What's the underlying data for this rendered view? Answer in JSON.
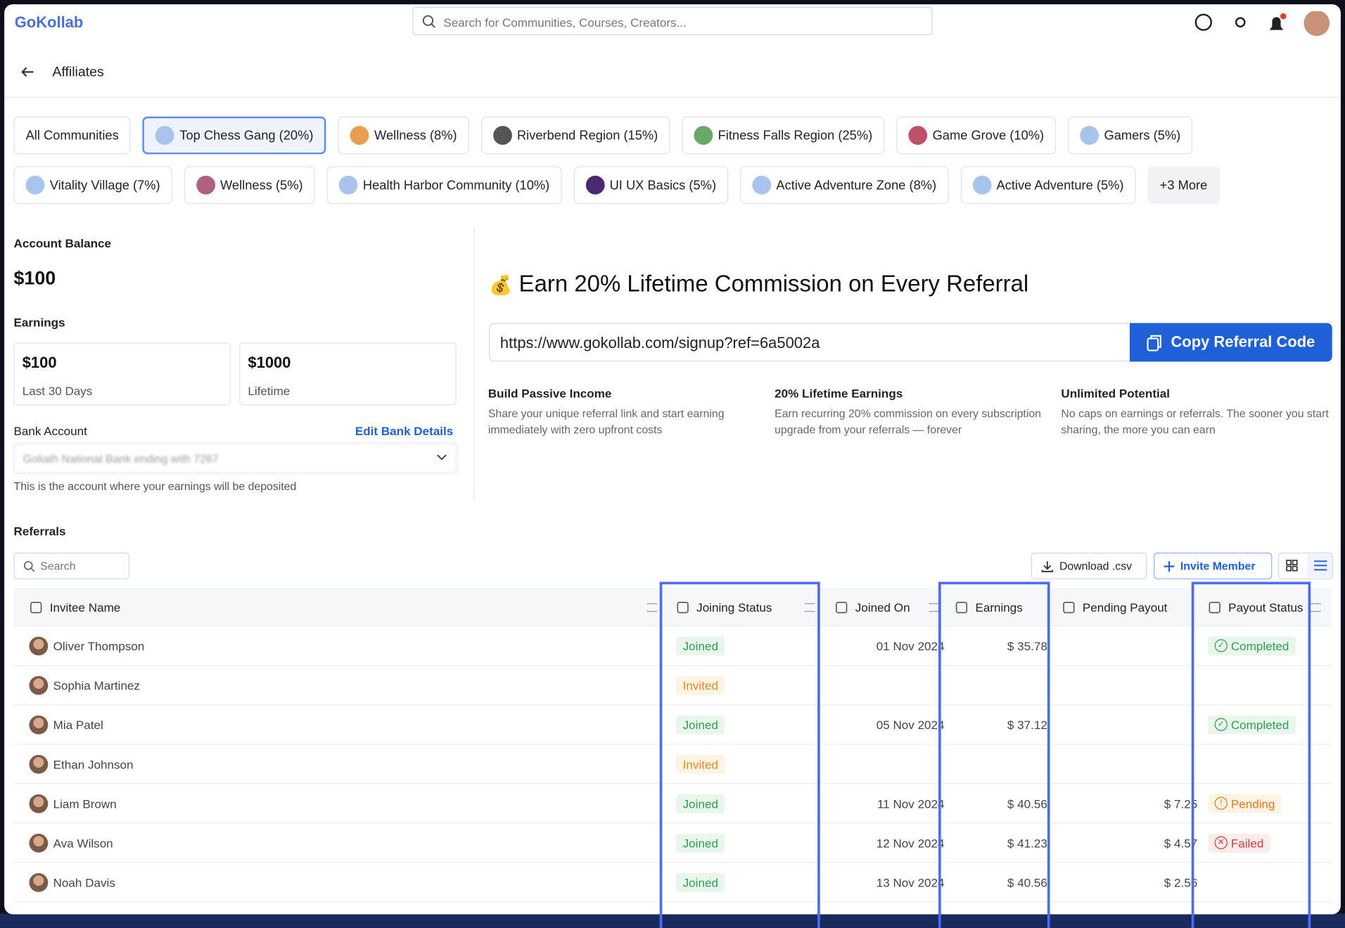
{
  "header": {
    "logo": "GoKollab",
    "search_placeholder": "Search for Communities, Courses, Creators..."
  },
  "page_title": "Affiliates",
  "communities": [
    "All Communities",
    "Top Chess Gang (20%)",
    "Wellness (8%)",
    "Riverbend Region (15%)",
    "Fitness Falls Region (25%)",
    "Game Grove (10%)",
    "Gamers (5%)",
    "Vitality Village (7%)",
    "Wellness (5%)",
    "Health Harbor Community (10%)",
    "UI UX Basics (5%)",
    "Active Adventure Zone (8%)",
    "Active Adventure (5%)",
    "+3 More"
  ],
  "account": {
    "balance_label": "Account Balance",
    "balance": "$100",
    "earnings_label": "Earnings",
    "cards": [
      {
        "value": "$100",
        "label": "Last 30 Days"
      },
      {
        "value": "$1000",
        "label": "Lifetime"
      }
    ],
    "bank_label": "Bank Account",
    "edit_link": "Edit Bank Details",
    "bank_value": "Goliath National Bank ending with 7267",
    "bank_hint": "This is the account where your earnings will be deposited"
  },
  "referral": {
    "emoji": "💰",
    "heading": "Earn 20% Lifetime Commission on Every Referral",
    "link": "https://www.gokollab.com/signup?ref=6a5002a",
    "copy_button": "Copy Referral Code",
    "features": [
      {
        "title": "Build Passive Income",
        "text": "Share your unique referral link and start earning immediately with zero upfront costs"
      },
      {
        "title": "20% Lifetime Earnings",
        "text": "Earn recurring 20% commission on every subscription upgrade from your referrals — forever"
      },
      {
        "title": "Unlimited Potential",
        "text": "No caps on earnings or referrals. The sooner you start sharing, the more you can earn"
      }
    ]
  },
  "referrals": {
    "title": "Referrals",
    "search_placeholder": "Search",
    "download_button": "Download .csv",
    "invite_button": "Invite Member",
    "columns": [
      "Invitee Name",
      "Joining Status",
      "Joined On",
      "Earnings",
      "Pending Payout",
      "Payout Status"
    ],
    "rows": [
      [
        "Oliver Thompson",
        "Joined",
        "01 Nov 2024",
        "$ 35.78",
        null,
        "Completed"
      ],
      [
        "Sophia Martinez",
        "Invited",
        null,
        null,
        null,
        null
      ],
      [
        "Mia Patel",
        "Joined",
        "05 Nov 2024",
        "$ 37.12",
        null,
        "Completed"
      ],
      [
        "Ethan Johnson",
        "Invited",
        null,
        null,
        null,
        null
      ],
      [
        "Liam Brown",
        "Joined",
        "11 Nov 2024",
        "$ 40.56",
        "$ 7.25",
        "Pending"
      ],
      [
        "Ava Wilson",
        "Joined",
        "12 Nov 2024",
        "$ 41.23",
        "$ 4.57",
        "Failed"
      ],
      [
        "Noah Davis",
        "Joined",
        "13 Nov 2024",
        "$ 40.56",
        "$ 2.56",
        null
      ]
    ]
  }
}
